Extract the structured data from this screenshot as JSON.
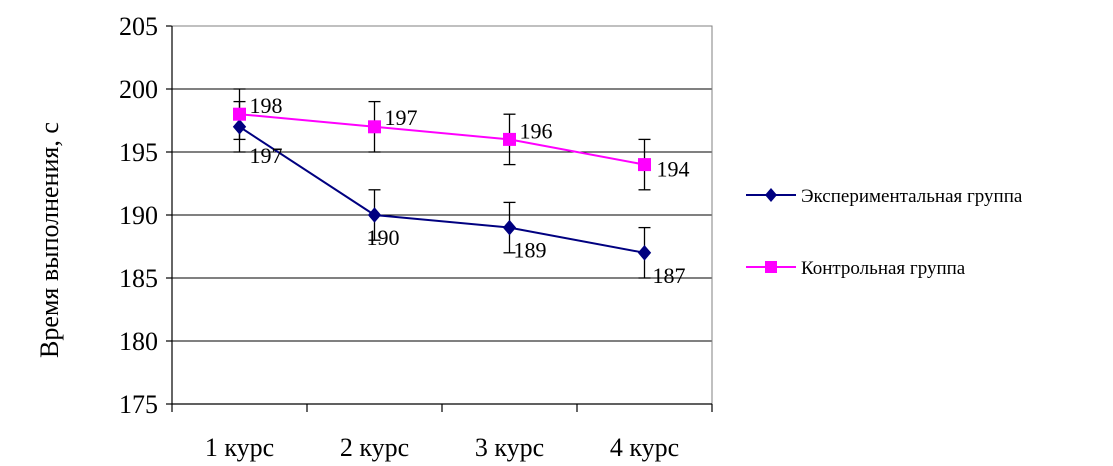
{
  "chart_data": {
    "type": "line",
    "title": "",
    "xlabel": "",
    "ylabel": "Время выполнения, с",
    "categories": [
      "1 курс",
      "2 курс",
      "3 курс",
      "4 курс"
    ],
    "ylim": [
      175,
      205
    ],
    "ytick_step": 5,
    "grid": true,
    "legend_position": "right",
    "error_bar": 2,
    "series": [
      {
        "name": "Экспериментальная группа",
        "values": [
          197,
          190,
          189,
          187
        ],
        "color": "#000080",
        "marker": "diamond",
        "labels": [
          "197",
          "190",
          "189",
          "187"
        ]
      },
      {
        "name": "Контрольная группа",
        "values": [
          198,
          197,
          196,
          194
        ],
        "color": "#ff00ff",
        "marker": "square",
        "labels": [
          "198",
          "197",
          "196",
          "194"
        ]
      }
    ]
  }
}
